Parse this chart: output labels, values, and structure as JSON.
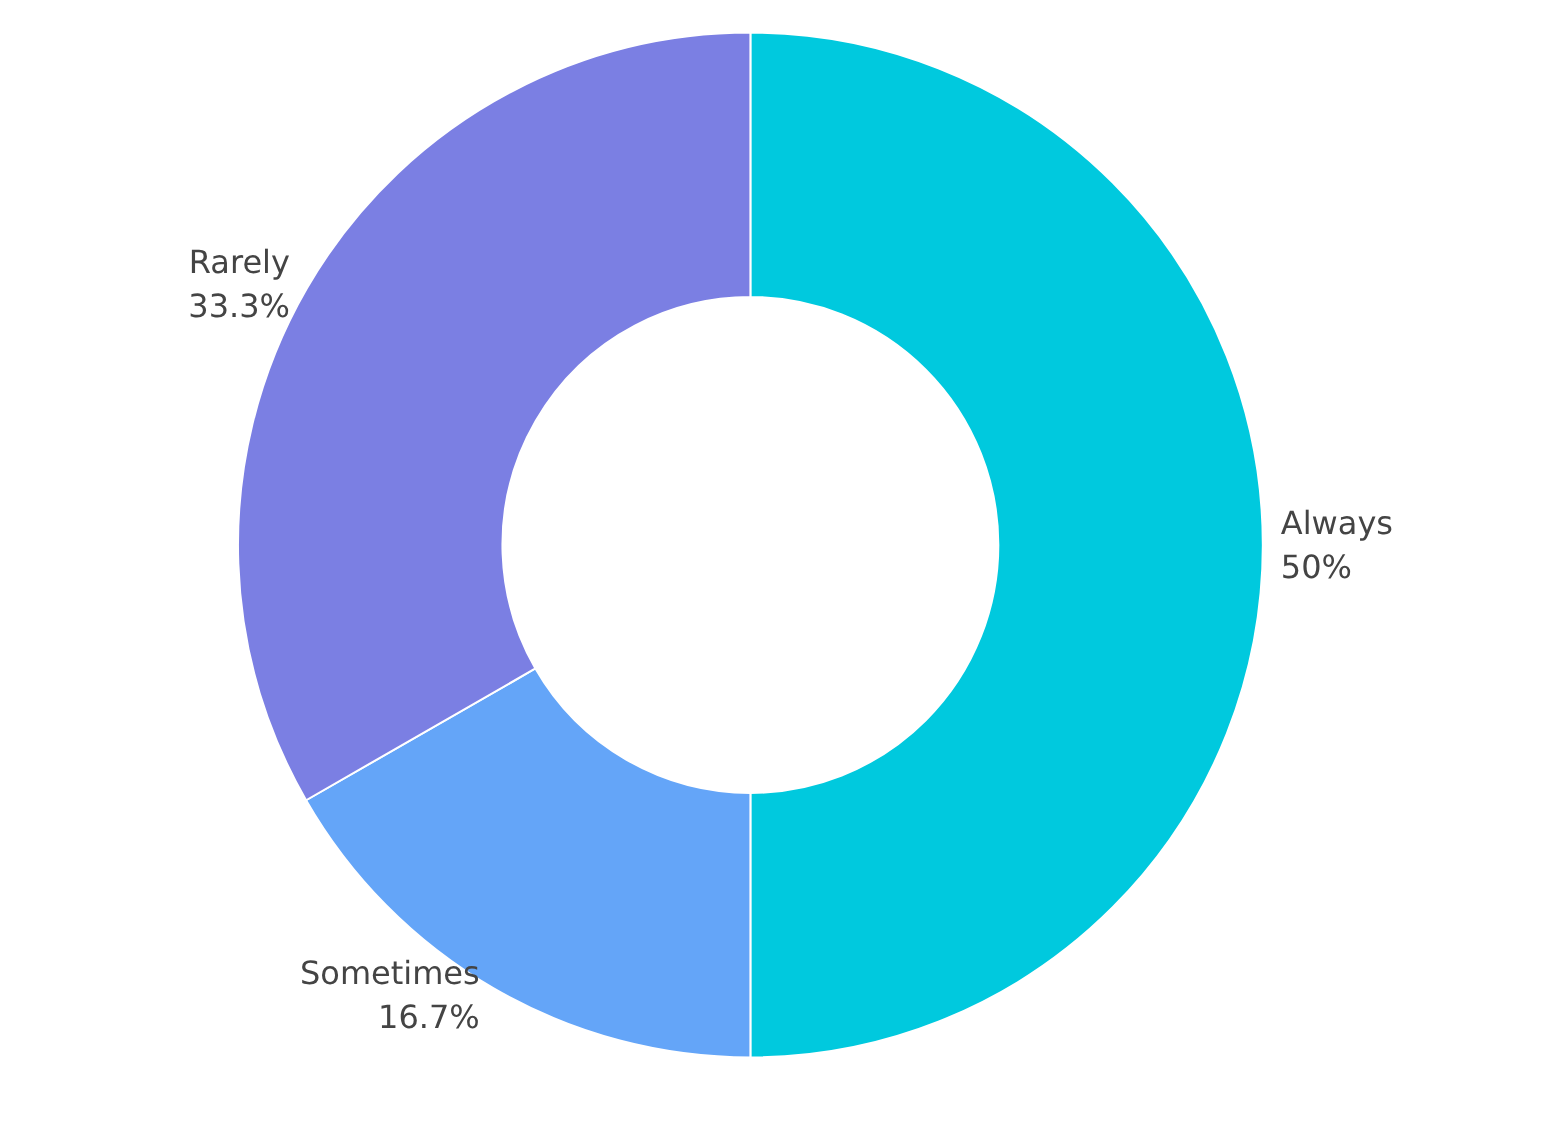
{
  "chart_data": {
    "type": "donut",
    "categories": [
      "Always",
      "Sometimes",
      "Rarely"
    ],
    "values": [
      50,
      16.7,
      33.3
    ],
    "colors": [
      "#00c9de",
      "#64a5f8",
      "#7b7fe3"
    ],
    "value_labels": [
      "50%",
      "16.7%",
      "33.3%"
    ],
    "legend": false
  }
}
